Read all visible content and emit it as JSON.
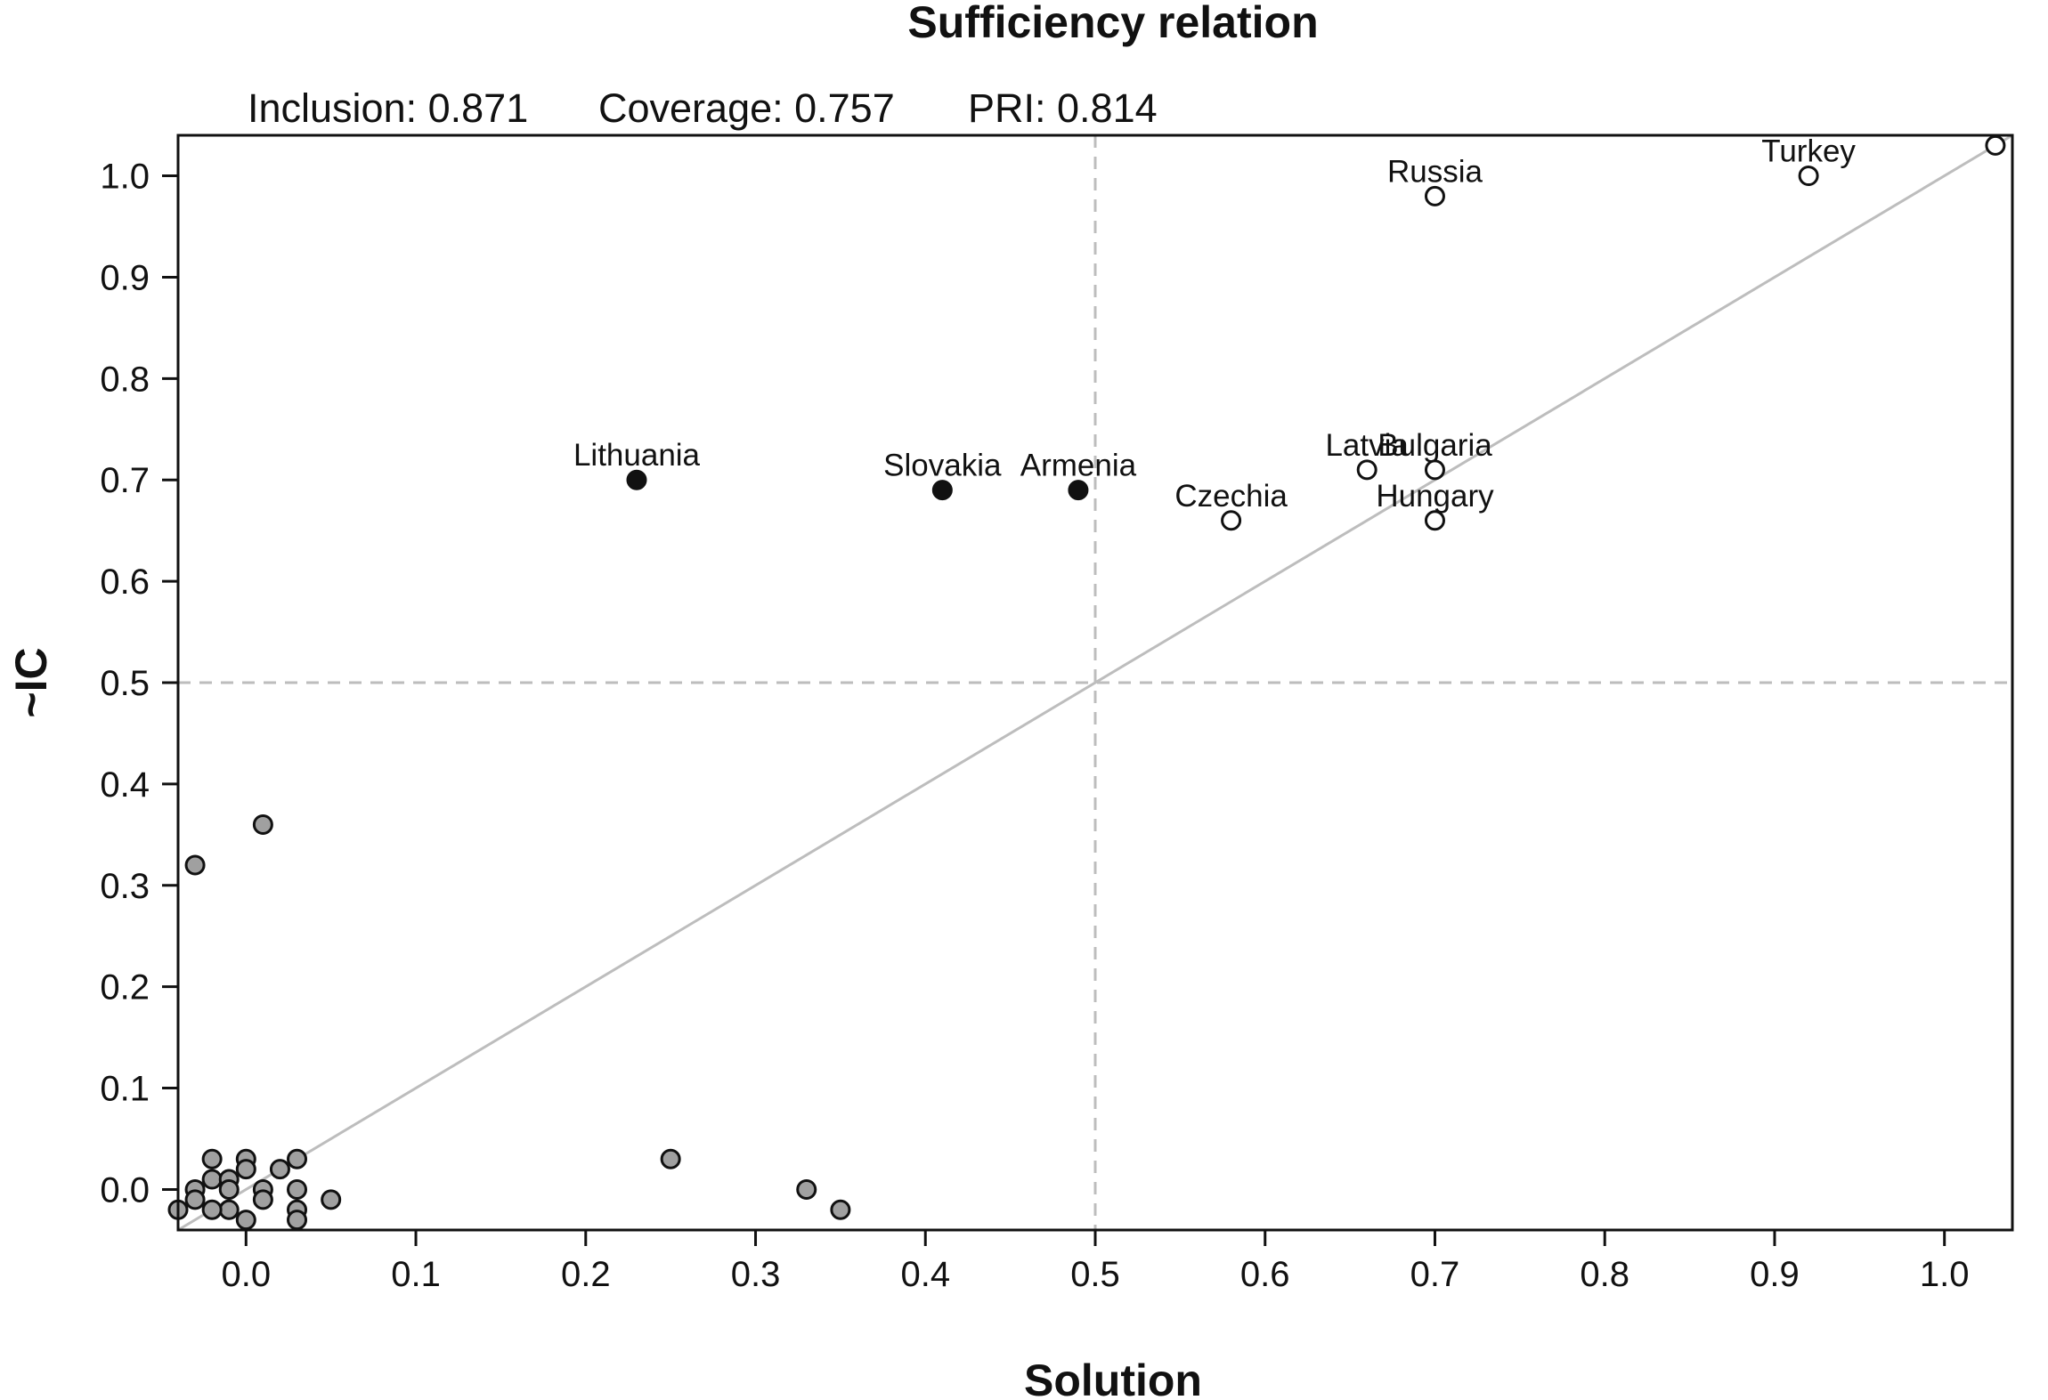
{
  "chart_data": {
    "type": "scatter",
    "title": "Sufficiency relation",
    "subtitle": {
      "inclusion": "Inclusion: 0.871",
      "coverage": "Coverage: 0.757",
      "pri": "PRI: 0.814"
    },
    "xlabel": "Solution",
    "ylabel": "~IC",
    "xlim": [
      -0.04,
      1.04
    ],
    "ylim": [
      -0.04,
      1.04
    ],
    "xticks": [
      "0.0",
      "0.1",
      "0.2",
      "0.3",
      "0.4",
      "0.5",
      "0.6",
      "0.7",
      "0.8",
      "0.9",
      "1.0"
    ],
    "yticks": [
      "0.0",
      "0.1",
      "0.2",
      "0.3",
      "0.4",
      "0.5",
      "0.6",
      "0.7",
      "0.8",
      "0.9",
      "1.0"
    ],
    "reference_lines": {
      "x": 0.5,
      "y": 0.5,
      "diagonal": true
    },
    "grid": false,
    "colors": {
      "inconsistent": "#111111",
      "consistent": "#ffffff",
      "other": "#a0a0a0",
      "diagonal": "#bdbdbd",
      "reference": "#bdbdbd"
    },
    "labeled_points": [
      {
        "label": "Lithuania",
        "x": 0.23,
        "y": 0.7,
        "group": "inconsistent"
      },
      {
        "label": "Slovakia",
        "x": 0.41,
        "y": 0.69,
        "group": "inconsistent"
      },
      {
        "label": "Armenia",
        "x": 0.49,
        "y": 0.69,
        "group": "inconsistent"
      },
      {
        "label": "Czechia",
        "x": 0.58,
        "y": 0.66,
        "group": "consistent"
      },
      {
        "label": "Latvia",
        "x": 0.66,
        "y": 0.71,
        "group": "consistent"
      },
      {
        "label": "Bulgaria",
        "x": 0.7,
        "y": 0.71,
        "group": "consistent"
      },
      {
        "label": "Hungary",
        "x": 0.7,
        "y": 0.66,
        "group": "consistent"
      },
      {
        "label": "Russia",
        "x": 0.7,
        "y": 0.98,
        "group": "consistent"
      },
      {
        "label": "Turkey",
        "x": 0.92,
        "y": 1.0,
        "group": "consistent"
      }
    ],
    "unlabeled_points": [
      {
        "x": 1.03,
        "y": 1.03,
        "group": "consistent"
      },
      {
        "x": -0.03,
        "y": 0.32,
        "group": "other"
      },
      {
        "x": 0.01,
        "y": 0.36,
        "group": "other"
      },
      {
        "x": 0.25,
        "y": 0.03,
        "group": "other"
      },
      {
        "x": 0.33,
        "y": 0.0,
        "group": "other"
      },
      {
        "x": 0.35,
        "y": -0.02,
        "group": "other"
      },
      {
        "x": 0.05,
        "y": -0.01,
        "group": "other"
      },
      {
        "x": -0.02,
        "y": 0.03,
        "group": "other"
      },
      {
        "x": -0.03,
        "y": 0.0,
        "group": "other"
      },
      {
        "x": -0.02,
        "y": 0.01,
        "group": "other"
      },
      {
        "x": -0.01,
        "y": 0.01,
        "group": "other"
      },
      {
        "x": -0.01,
        "y": 0.0,
        "group": "other"
      },
      {
        "x": 0.0,
        "y": 0.03,
        "group": "other"
      },
      {
        "x": 0.0,
        "y": 0.02,
        "group": "other"
      },
      {
        "x": 0.0,
        "y": -0.03,
        "group": "other"
      },
      {
        "x": -0.01,
        "y": -0.02,
        "group": "other"
      },
      {
        "x": 0.01,
        "y": 0.0,
        "group": "other"
      },
      {
        "x": 0.01,
        "y": -0.01,
        "group": "other"
      },
      {
        "x": 0.02,
        "y": 0.02,
        "group": "other"
      },
      {
        "x": 0.03,
        "y": 0.03,
        "group": "other"
      },
      {
        "x": 0.03,
        "y": 0.0,
        "group": "other"
      },
      {
        "x": 0.03,
        "y": -0.02,
        "group": "other"
      },
      {
        "x": 0.03,
        "y": -0.03,
        "group": "other"
      },
      {
        "x": -0.04,
        "y": -0.02,
        "group": "other"
      },
      {
        "x": -0.03,
        "y": -0.01,
        "group": "other"
      },
      {
        "x": -0.02,
        "y": -0.02,
        "group": "other"
      }
    ]
  }
}
